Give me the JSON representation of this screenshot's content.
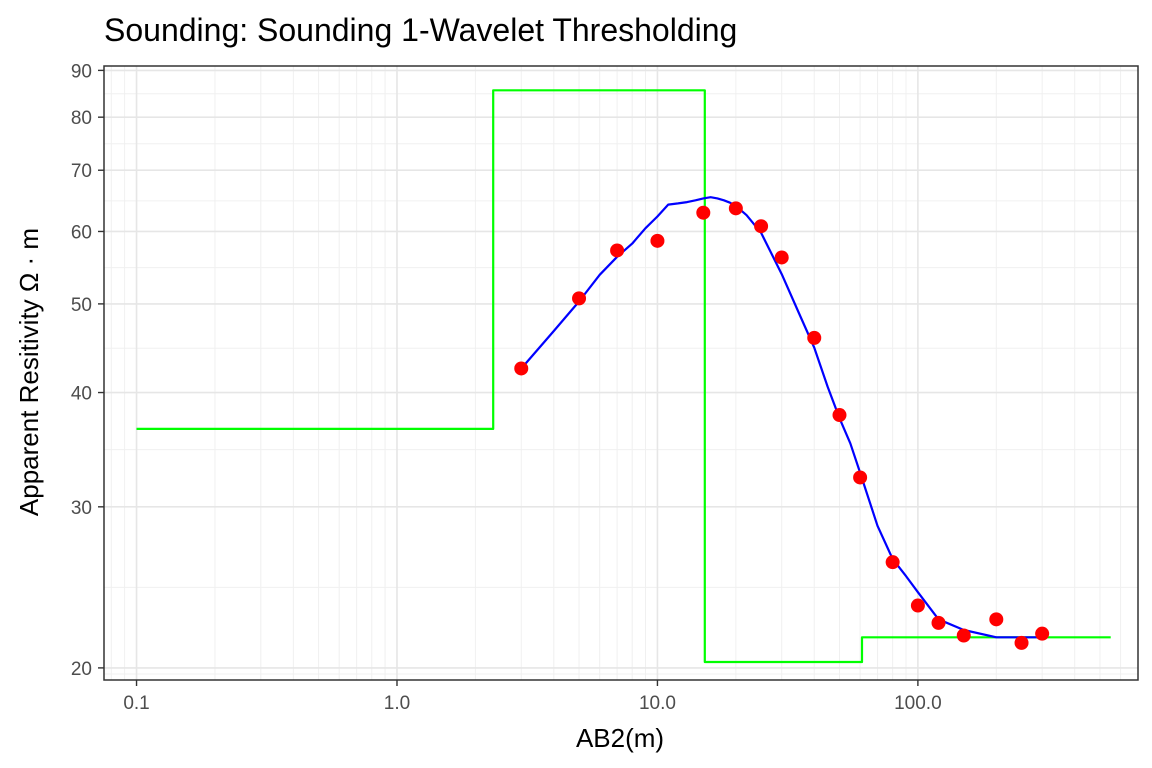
{
  "chart_data": {
    "type": "line",
    "title": "Sounding:  Sounding 1-Wavelet Thresholding",
    "xlabel": "AB2(m)",
    "ylabel": "Apparent Resitivity Ω · m",
    "x_scale": "log",
    "y_scale": "log",
    "xlim": [
      0.075,
      700
    ],
    "ylim": [
      19.4,
      91
    ],
    "x_ticks": [
      0.1,
      1,
      10,
      100
    ],
    "x_tick_labels": [
      "0.1",
      "1.0",
      "10.0",
      "100.0"
    ],
    "y_ticks": [
      20,
      30,
      40,
      50,
      60,
      70,
      80,
      90
    ],
    "y_tick_labels": [
      "20",
      "30",
      "40",
      "50",
      "60",
      "70",
      "80",
      "90"
    ],
    "grid": true,
    "series": [
      {
        "kind": "points",
        "color": "#ff0000",
        "x": [
          3,
          5,
          7,
          10,
          15,
          20,
          25,
          30,
          40,
          50,
          60,
          80,
          100,
          120,
          150,
          200,
          250,
          300
        ],
        "y": [
          42.5,
          50.7,
          57.2,
          58.6,
          62.9,
          63.6,
          60.8,
          56.2,
          45.9,
          37.8,
          32.3,
          26.1,
          23.4,
          22.4,
          21.7,
          22.6,
          21.3,
          21.8
        ]
      },
      {
        "kind": "line",
        "color": "#0000ff",
        "x": [
          3,
          4,
          5,
          6,
          7,
          8,
          9,
          10,
          11,
          12,
          13,
          14,
          15,
          16,
          17,
          18,
          19,
          20,
          22,
          25,
          30,
          35,
          40,
          45,
          50,
          55,
          60,
          70,
          80,
          90,
          100,
          120,
          150,
          200,
          300
        ],
        "y": [
          42.5,
          46.7,
          50.3,
          53.8,
          56.3,
          58.2,
          60.5,
          62.3,
          64.2,
          64.4,
          64.6,
          64.9,
          65.2,
          65.4,
          65.2,
          64.9,
          64.5,
          64.0,
          62.5,
          59.8,
          53.9,
          48.8,
          44.8,
          40.6,
          37.5,
          35.2,
          32.7,
          28.6,
          26.3,
          25.2,
          24.2,
          22.6,
          22.0,
          21.6,
          21.6
        ]
      },
      {
        "kind": "step",
        "color": "#00ff00",
        "x": [
          0.1,
          2.34,
          2.34,
          15.2,
          15.2,
          61,
          61,
          550
        ],
        "y": [
          36.5,
          36.5,
          85.6,
          85.6,
          20.3,
          20.3,
          21.6,
          21.6
        ]
      }
    ]
  }
}
